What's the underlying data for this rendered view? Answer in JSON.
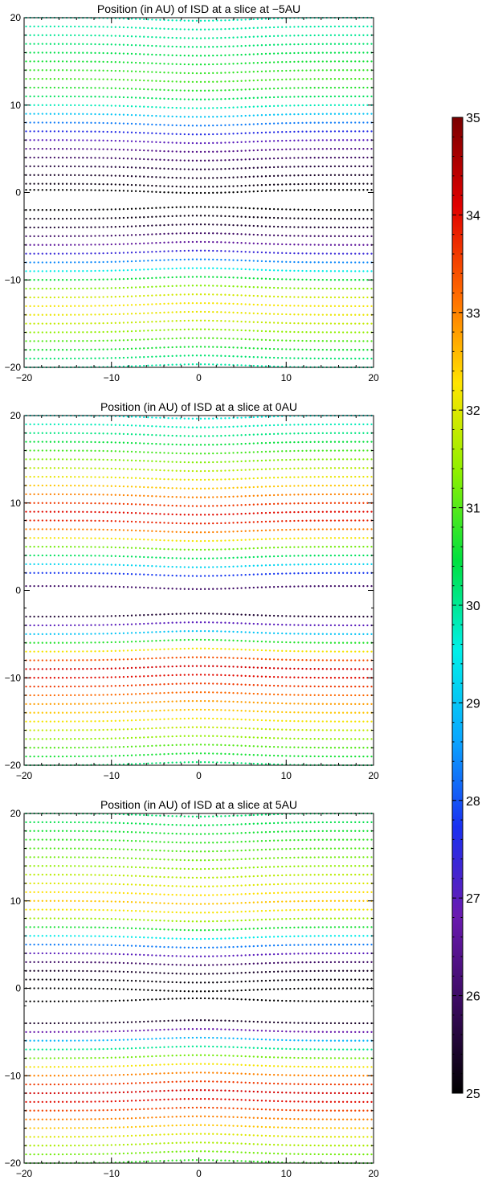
{
  "chart_data": [
    {
      "type": "scatter",
      "title": "Position (in AU) of ISD at a slice at −5AU",
      "xlim": [
        -20,
        20
      ],
      "ylim": [
        -20,
        20
      ],
      "xticks": [
        -20,
        -10,
        0,
        10,
        20
      ],
      "yticks": [
        -20,
        -10,
        0,
        10,
        20
      ],
      "xtick_labels": [
        "−20",
        "−10",
        "0",
        "10",
        "20"
      ],
      "ytick_labels": [
        "−20",
        "−10",
        "0",
        "10",
        "20"
      ],
      "rows": [
        {
          "y": 20.0,
          "value": 29.8
        },
        {
          "y": 19.0,
          "value": 29.9
        },
        {
          "y": 18.0,
          "value": 30.0
        },
        {
          "y": 17.0,
          "value": 30.2
        },
        {
          "y": 16.0,
          "value": 30.4
        },
        {
          "y": 15.0,
          "value": 30.6
        },
        {
          "y": 14.0,
          "value": 30.8
        },
        {
          "y": 13.0,
          "value": 30.9
        },
        {
          "y": 12.0,
          "value": 30.7
        },
        {
          "y": 11.0,
          "value": 30.3
        },
        {
          "y": 10.0,
          "value": 29.8
        },
        {
          "y": 9.0,
          "value": 29.0
        },
        {
          "y": 8.0,
          "value": 28.3
        },
        {
          "y": 7.0,
          "value": 27.6
        },
        {
          "y": 6.0,
          "value": 27.0
        },
        {
          "y": 5.0,
          "value": 26.4
        },
        {
          "y": 4.0,
          "value": 26.0
        },
        {
          "y": 3.0,
          "value": 25.6
        },
        {
          "y": 2.0,
          "value": 25.4
        },
        {
          "y": 1.0,
          "value": 25.2
        },
        {
          "y": 0.3,
          "value": 25.0
        },
        {
          "y": -2.0,
          "value": 25.0
        },
        {
          "y": -3.0,
          "value": 25.2
        },
        {
          "y": -4.0,
          "value": 25.5
        },
        {
          "y": -5.0,
          "value": 26.0
        },
        {
          "y": -6.0,
          "value": 26.6
        },
        {
          "y": -7.0,
          "value": 27.4
        },
        {
          "y": -8.0,
          "value": 28.4
        },
        {
          "y": -9.0,
          "value": 29.5
        },
        {
          "y": -10.0,
          "value": 30.5
        },
        {
          "y": -11.0,
          "value": 31.3
        },
        {
          "y": -12.0,
          "value": 31.9
        },
        {
          "y": -13.0,
          "value": 32.2
        },
        {
          "y": -14.0,
          "value": 32.1
        },
        {
          "y": -15.0,
          "value": 31.8
        },
        {
          "y": -16.0,
          "value": 31.4
        },
        {
          "y": -17.0,
          "value": 31.0
        },
        {
          "y": -18.0,
          "value": 30.6
        },
        {
          "y": -19.0,
          "value": 30.2
        },
        {
          "y": -20.0,
          "value": 29.9
        }
      ]
    },
    {
      "type": "scatter",
      "title": "Position (in AU) of ISD at a slice at 0AU",
      "xlim": [
        -20,
        20
      ],
      "ylim": [
        -20,
        20
      ],
      "xticks": [
        -20,
        -10,
        0,
        10,
        20
      ],
      "yticks": [
        -20,
        -10,
        0,
        10,
        20
      ],
      "xtick_labels": [
        "−20",
        "−10",
        "0",
        "10",
        "20"
      ],
      "ytick_labels": [
        "−20",
        "−10",
        "0",
        "10",
        "20"
      ],
      "rows": [
        {
          "y": 20.0,
          "value": 29.6
        },
        {
          "y": 19.0,
          "value": 29.8
        },
        {
          "y": 18.0,
          "value": 30.1
        },
        {
          "y": 17.0,
          "value": 30.5
        },
        {
          "y": 16.0,
          "value": 30.9
        },
        {
          "y": 15.0,
          "value": 31.3
        },
        {
          "y": 14.0,
          "value": 31.7
        },
        {
          "y": 13.0,
          "value": 32.1
        },
        {
          "y": 12.0,
          "value": 32.5
        },
        {
          "y": 11.0,
          "value": 33.0
        },
        {
          "y": 10.0,
          "value": 33.6
        },
        {
          "y": 9.0,
          "value": 34.0
        },
        {
          "y": 8.0,
          "value": 33.8
        },
        {
          "y": 7.0,
          "value": 33.0
        },
        {
          "y": 6.0,
          "value": 32.2
        },
        {
          "y": 5.0,
          "value": 31.2
        },
        {
          "y": 4.0,
          "value": 30.3
        },
        {
          "y": 3.0,
          "value": 29.2
        },
        {
          "y": 2.0,
          "value": 27.8
        },
        {
          "y": 0.5,
          "value": 26.0
        },
        {
          "y": -3.0,
          "value": 25.5
        },
        {
          "y": -4.0,
          "value": 27.0
        },
        {
          "y": -5.0,
          "value": 29.0
        },
        {
          "y": -6.0,
          "value": 30.7
        },
        {
          "y": -7.0,
          "value": 32.2
        },
        {
          "y": -8.0,
          "value": 33.4
        },
        {
          "y": -9.0,
          "value": 34.2
        },
        {
          "y": -10.0,
          "value": 34.0
        },
        {
          "y": -11.0,
          "value": 33.6
        },
        {
          "y": -12.0,
          "value": 33.2
        },
        {
          "y": -13.0,
          "value": 32.8
        },
        {
          "y": -14.0,
          "value": 32.5
        },
        {
          "y": -15.0,
          "value": 32.2
        },
        {
          "y": -16.0,
          "value": 31.8
        },
        {
          "y": -17.0,
          "value": 31.4
        },
        {
          "y": -18.0,
          "value": 31.0
        },
        {
          "y": -19.0,
          "value": 30.6
        },
        {
          "y": -20.0,
          "value": 30.2
        }
      ]
    },
    {
      "type": "scatter",
      "title": "Position (in AU) of ISD at a slice at 5AU",
      "xlim": [
        -20,
        20
      ],
      "ylim": [
        -20,
        20
      ],
      "xticks": [
        -20,
        -10,
        0,
        10,
        20
      ],
      "yticks": [
        -20,
        -10,
        0,
        10,
        20
      ],
      "xtick_labels": [
        "−20",
        "−10",
        "0",
        "10",
        "20"
      ],
      "ytick_labels": [
        "−20",
        "−10",
        "0",
        "10",
        "20"
      ],
      "rows": [
        {
          "y": 20.0,
          "value": 30.2
        },
        {
          "y": 19.0,
          "value": 30.4
        },
        {
          "y": 18.0,
          "value": 30.6
        },
        {
          "y": 17.0,
          "value": 30.8
        },
        {
          "y": 16.0,
          "value": 31.0
        },
        {
          "y": 15.0,
          "value": 31.2
        },
        {
          "y": 14.0,
          "value": 31.4
        },
        {
          "y": 13.0,
          "value": 31.7
        },
        {
          "y": 12.0,
          "value": 32.0
        },
        {
          "y": 11.0,
          "value": 32.3
        },
        {
          "y": 10.0,
          "value": 32.5
        },
        {
          "y": 9.0,
          "value": 32.2
        },
        {
          "y": 8.0,
          "value": 31.5
        },
        {
          "y": 7.0,
          "value": 30.6
        },
        {
          "y": 6.0,
          "value": 29.5
        },
        {
          "y": 5.0,
          "value": 28.3
        },
        {
          "y": 4.0,
          "value": 27.0
        },
        {
          "y": 3.0,
          "value": 26.0
        },
        {
          "y": 2.0,
          "value": 25.4
        },
        {
          "y": 1.0,
          "value": 25.1
        },
        {
          "y": 0.0,
          "value": 25.0
        },
        {
          "y": -1.5,
          "value": 25.0
        },
        {
          "y": -4.0,
          "value": 25.4
        },
        {
          "y": -5.0,
          "value": 26.8
        },
        {
          "y": -6.0,
          "value": 28.8
        },
        {
          "y": -7.0,
          "value": 30.0
        },
        {
          "y": -8.0,
          "value": 31.2
        },
        {
          "y": -9.0,
          "value": 32.2
        },
        {
          "y": -10.0,
          "value": 33.0
        },
        {
          "y": -11.0,
          "value": 33.6
        },
        {
          "y": -12.0,
          "value": 34.2
        },
        {
          "y": -13.0,
          "value": 34.0
        },
        {
          "y": -14.0,
          "value": 33.5
        },
        {
          "y": -15.0,
          "value": 33.0
        },
        {
          "y": -16.0,
          "value": 32.5
        },
        {
          "y": -17.0,
          "value": 32.0
        },
        {
          "y": -18.0,
          "value": 31.6
        },
        {
          "y": -19.0,
          "value": 31.2
        },
        {
          "y": -20.0,
          "value": 30.8
        }
      ]
    }
  ],
  "colorbar": {
    "min": 25,
    "max": 35,
    "ticks": [
      25,
      26,
      27,
      28,
      29,
      30,
      31,
      32,
      33,
      34,
      35
    ],
    "tick_labels": [
      "25",
      "26",
      "27",
      "28",
      "29",
      "30",
      "31",
      "32",
      "33",
      "34",
      "35"
    ],
    "colormap": [
      "#000000",
      "#3a0a5e",
      "#6a1ab0",
      "#1a30f0",
      "#0aa8ff",
      "#00f0e8",
      "#00e040",
      "#8ef000",
      "#ffe400",
      "#ff6a00",
      "#e00000",
      "#7a0000"
    ]
  }
}
